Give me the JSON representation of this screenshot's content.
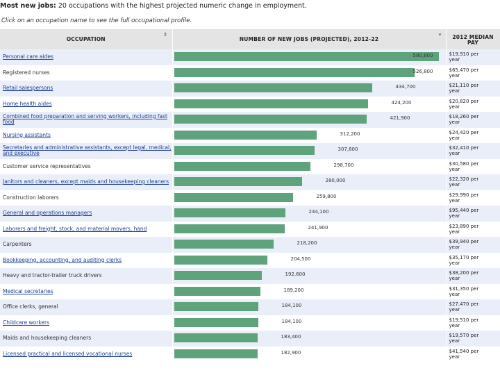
{
  "heading": {
    "bold": "Most new jobs:",
    "rest": " 20 occupations with the highest projected numeric change in employment."
  },
  "subheading": "Click on an occupation name to see the full occupational profile.",
  "columns": {
    "occupation": "OCCUPATION",
    "new_jobs": "NUMBER OF NEW JOBS (PROJECTED), 2012-22",
    "pay_line1": "2012 MEDIAN",
    "pay_line2": "PAY",
    "sort_icon": "sort-icon",
    "dropdown_icon": "chevron-down-icon"
  },
  "colors": {
    "bar": "#5fa37c",
    "header_bg": "#e4e4e4",
    "row_alt": "#e9eef9",
    "link": "#1a3d8f"
  },
  "chart_data": {
    "type": "bar",
    "orientation": "horizontal",
    "title": "Most new jobs: 20 occupations with the highest projected numeric change in employment.",
    "xlabel": "NUMBER OF NEW JOBS (PROJECTED), 2012-22",
    "ylabel": "OCCUPATION",
    "xlim": [
      0,
      600000
    ],
    "categories": [
      "Personal care aides",
      "Registered nurses",
      "Retail salespersons",
      "Home health aides",
      "Combined food preparation and serving workers, including fast food",
      "Nursing assistants",
      "Secretaries and administrative assistants, except legal, medical, and executive",
      "Customer service representatives",
      "Janitors and cleaners, except maids and housekeeping cleaners",
      "Construction laborers",
      "General and operations managers",
      "Laborers and freight, stock, and material movers, hand",
      "Carpenters",
      "Bookkeeping, accounting, and auditing clerks",
      "Heavy and tractor-trailer truck drivers",
      "Medical secretaries",
      "Office clerks, general",
      "Childcare workers",
      "Maids and housekeeping cleaners",
      "Licensed practical and licensed vocational nurses"
    ],
    "values": [
      580800,
      526800,
      434700,
      424200,
      421900,
      312200,
      307800,
      298700,
      280000,
      259800,
      244100,
      241900,
      218200,
      204500,
      192600,
      189200,
      184100,
      184100,
      183400,
      182900
    ],
    "value_labels": [
      "580,800",
      "526,800",
      "434,700",
      "424,200",
      "421,900",
      "312,200",
      "307,800",
      "298,700",
      "280,000",
      "259,800",
      "244,100",
      "241,900",
      "218,200",
      "204,500",
      "192,600",
      "189,200",
      "184,100",
      "184,100",
      "183,400",
      "182,900"
    ],
    "linked": [
      true,
      false,
      true,
      true,
      true,
      true,
      true,
      false,
      true,
      false,
      true,
      true,
      false,
      true,
      false,
      true,
      false,
      true,
      false,
      true
    ],
    "pay": [
      [
        "$19,910 per",
        "year"
      ],
      [
        "$65,470 per",
        "year"
      ],
      [
        "$21,110 per",
        "year"
      ],
      [
        "$20,820 per",
        "year"
      ],
      [
        "$18,260 per",
        "year"
      ],
      [
        "$24,420 per",
        "year"
      ],
      [
        "$32,410 per",
        "year"
      ],
      [
        "$30,580 per",
        "year"
      ],
      [
        "$22,320 per",
        "year"
      ],
      [
        "$29,990 per",
        "year"
      ],
      [
        "$95,440 per",
        "year"
      ],
      [
        "$23,890 per",
        "year"
      ],
      [
        "$39,940 per",
        "year"
      ],
      [
        "$35,170 per",
        "year"
      ],
      [
        "$38,200 per",
        "year"
      ],
      [
        "$31,350 per",
        "year"
      ],
      [
        "$27,470 per",
        "year"
      ],
      [
        "$19,510 per",
        "year"
      ],
      [
        "$19,570 per",
        "year"
      ],
      [
        "$41,540 per",
        "year"
      ]
    ]
  }
}
